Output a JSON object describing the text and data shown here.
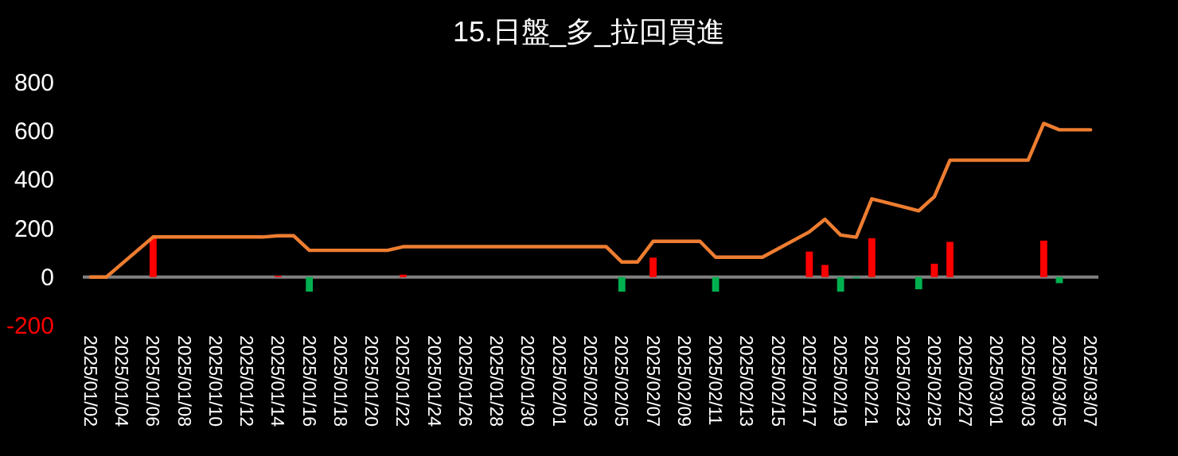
{
  "chart_data": {
    "type": "bar",
    "title": "15.日盤_多_拉回買進",
    "xlim": [
      "2025-01-01T12:00",
      "2025-03-07T12:00"
    ],
    "xticks": [
      {
        "value": "2025-01-02",
        "label": "2025/01/02"
      },
      {
        "value": "2025-01-04",
        "label": "2025/01/04"
      },
      {
        "value": "2025-01-06",
        "label": "2025/01/06"
      },
      {
        "value": "2025-01-08",
        "label": "2025/01/08"
      },
      {
        "value": "2025-01-10",
        "label": "2025/01/10"
      },
      {
        "value": "2025-01-12",
        "label": "2025/01/12"
      },
      {
        "value": "2025-01-14",
        "label": "2025/01/14"
      },
      {
        "value": "2025-01-16",
        "label": "2025/01/16"
      },
      {
        "value": "2025-01-18",
        "label": "2025/01/18"
      },
      {
        "value": "2025-01-20",
        "label": "2025/01/20"
      },
      {
        "value": "2025-01-22",
        "label": "2025/01/22"
      },
      {
        "value": "2025-01-24",
        "label": "2025/01/24"
      },
      {
        "value": "2025-01-26",
        "label": "2025/01/26"
      },
      {
        "value": "2025-01-28",
        "label": "2025/01/28"
      },
      {
        "value": "2025-01-30",
        "label": "2025/01/30"
      },
      {
        "value": "2025-02-01",
        "label": "2025/02/01"
      },
      {
        "value": "2025-02-03",
        "label": "2025/02/03"
      },
      {
        "value": "2025-02-05",
        "label": "2025/02/05"
      },
      {
        "value": "2025-02-07",
        "label": "2025/02/07"
      },
      {
        "value": "2025-02-09",
        "label": "2025/02/09"
      },
      {
        "value": "2025-02-11",
        "label": "2025/02/11"
      },
      {
        "value": "2025-02-13",
        "label": "2025/02/13"
      },
      {
        "value": "2025-02-15",
        "label": "2025/02/15"
      },
      {
        "value": "2025-02-17",
        "label": "2025/02/17"
      },
      {
        "value": "2025-02-19",
        "label": "2025/02/19"
      },
      {
        "value": "2025-02-21",
        "label": "2025/02/21"
      },
      {
        "value": "2025-02-23",
        "label": "2025/02/23"
      },
      {
        "value": "2025-02-25",
        "label": "2025/02/25"
      },
      {
        "value": "2025-02-27",
        "label": "2025/02/27"
      },
      {
        "value": "2025-03-01",
        "label": "2025/03/01"
      },
      {
        "value": "2025-03-03",
        "label": "2025/03/03"
      },
      {
        "value": "2025-03-05",
        "label": "2025/03/05"
      },
      {
        "value": "2025-03-07",
        "label": "2025/03/07"
      }
    ],
    "ylim": [
      -200,
      800
    ],
    "yticks": [
      -200,
      0,
      200,
      400,
      600,
      800
    ],
    "series": [
      {
        "x": [
          "2025-01-06",
          "2025-01-14",
          "2025-01-16",
          "2025-01-22",
          "2025-02-05",
          "2025-02-07",
          "2025-02-11",
          "2025-02-17",
          "2025-02-18",
          "2025-02-19",
          "2025-02-20",
          "2025-02-21",
          "2025-02-24",
          "2025-02-25",
          "2025-02-26",
          "2025-03-04",
          "2025-03-05"
        ],
        "values": [
          160,
          5,
          -60,
          10,
          -60,
          80,
          -60,
          105,
          50,
          -60,
          -5,
          160,
          -50,
          55,
          145,
          150,
          -25
        ],
        "colors": [
          "#ff0000",
          "#ff0000",
          "#00b050",
          "#ff0000",
          "#00b050",
          "#ff0000",
          "#00b050",
          "#ff0000",
          "#ff0000",
          "#00b050",
          "#00b050",
          "#ff0000",
          "#00b050",
          "#ff0000",
          "#ff0000",
          "#ff0000",
          "#00b050"
        ]
      },
      {
        "type": "line",
        "color": "#ed7d31",
        "x": [
          "2025-01-02",
          "2025-01-03",
          "2025-01-06",
          "2025-01-13",
          "2025-01-14",
          "2025-01-15",
          "2025-01-16",
          "2025-01-21",
          "2025-01-22",
          "2025-02-04",
          "2025-02-05",
          "2025-02-06",
          "2025-02-07",
          "2025-02-10",
          "2025-02-11",
          "2025-02-14",
          "2025-02-17",
          "2025-02-18",
          "2025-02-19",
          "2025-02-20",
          "2025-02-21",
          "2025-02-24",
          "2025-02-25",
          "2025-02-26",
          "2025-03-03",
          "2025-03-04",
          "2025-03-05",
          "2025-03-07"
        ],
        "values": [
          0,
          0,
          165,
          165,
          170,
          170,
          110,
          110,
          125,
          125,
          62,
          62,
          147,
          147,
          82,
          82,
          186,
          238,
          173,
          164,
          322,
          273,
          331,
          481,
          481,
          632,
          606,
          606
        ]
      }
    ]
  }
}
